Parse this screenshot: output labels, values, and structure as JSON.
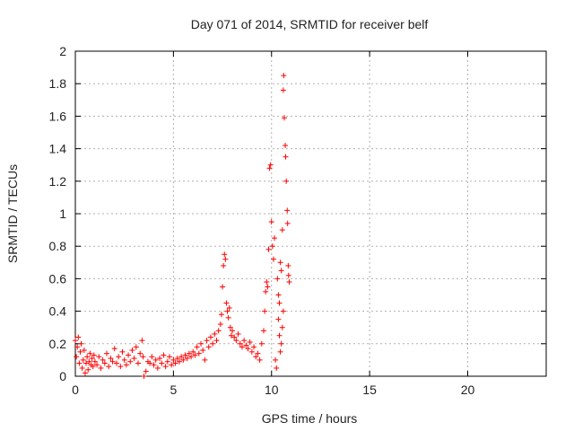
{
  "chart_data": {
    "type": "scatter",
    "title": "Day 071 of 2014, SRMTID for receiver belf",
    "xlabel": "GPS time / hours",
    "ylabel": "SRMTID / TECUs",
    "xlim": [
      0,
      24
    ],
    "ylim": [
      0,
      2
    ],
    "xticks": [
      0,
      5,
      10,
      15,
      20
    ],
    "xtick_labels": [
      "0",
      "5",
      "10",
      "15",
      "20"
    ],
    "yticks": [
      0,
      0.2,
      0.4,
      0.6,
      0.8,
      1,
      1.2,
      1.4,
      1.6,
      1.8,
      2
    ],
    "ytick_labels": [
      "0",
      "0.2",
      "0.4",
      "0.6",
      "0.8",
      "1",
      "1.2",
      "1.4",
      "1.6",
      "1.8",
      "2"
    ],
    "grid": true,
    "marker": "+",
    "color": "#ff0000",
    "series": [
      {
        "name": "SRMTID",
        "points": [
          [
            0.0,
            0.22
          ],
          [
            0.05,
            0.12
          ],
          [
            0.1,
            0.18
          ],
          [
            0.15,
            0.24
          ],
          [
            0.2,
            0.08
          ],
          [
            0.25,
            0.15
          ],
          [
            0.3,
            0.2
          ],
          [
            0.35,
            0.05
          ],
          [
            0.4,
            0.1
          ],
          [
            0.45,
            0.16
          ],
          [
            0.5,
            0.02
          ],
          [
            0.55,
            0.08
          ],
          [
            0.6,
            0.12
          ],
          [
            0.65,
            0.04
          ],
          [
            0.7,
            0.09
          ],
          [
            0.75,
            0.14
          ],
          [
            0.8,
            0.07
          ],
          [
            0.85,
            0.11
          ],
          [
            0.9,
            0.06
          ],
          [
            0.95,
            0.13
          ],
          [
            1.0,
            0.09
          ],
          [
            1.1,
            0.07
          ],
          [
            1.2,
            0.12
          ],
          [
            1.3,
            0.05
          ],
          [
            1.4,
            0.1
          ],
          [
            1.5,
            0.08
          ],
          [
            1.6,
            0.14
          ],
          [
            1.7,
            0.06
          ],
          [
            1.8,
            0.11
          ],
          [
            1.9,
            0.09
          ],
          [
            2.0,
            0.17
          ],
          [
            2.1,
            0.08
          ],
          [
            2.2,
            0.12
          ],
          [
            2.3,
            0.06
          ],
          [
            2.4,
            0.15
          ],
          [
            2.5,
            0.1
          ],
          [
            2.6,
            0.07
          ],
          [
            2.7,
            0.13
          ],
          [
            2.8,
            0.09
          ],
          [
            2.9,
            0.16
          ],
          [
            3.0,
            0.11
          ],
          [
            3.1,
            0.18
          ],
          [
            3.2,
            0.08
          ],
          [
            3.3,
            0.14
          ],
          [
            3.4,
            0.22
          ],
          [
            3.45,
            0.12
          ],
          [
            3.5,
            0.0
          ],
          [
            3.6,
            0.03
          ],
          [
            3.7,
            0.09
          ],
          [
            3.8,
            0.08
          ],
          [
            3.9,
            0.12
          ],
          [
            4.0,
            0.07
          ],
          [
            4.1,
            0.1
          ],
          [
            4.2,
            0.05
          ],
          [
            4.3,
            0.11
          ],
          [
            4.4,
            0.08
          ],
          [
            4.5,
            0.13
          ],
          [
            4.6,
            0.06
          ],
          [
            4.7,
            0.09
          ],
          [
            4.8,
            0.12
          ],
          [
            4.9,
            0.07
          ],
          [
            5.0,
            0.1
          ],
          [
            5.1,
            0.08
          ],
          [
            5.2,
            0.11
          ],
          [
            5.3,
            0.09
          ],
          [
            5.4,
            0.12
          ],
          [
            5.5,
            0.1
          ],
          [
            5.6,
            0.13
          ],
          [
            5.7,
            0.11
          ],
          [
            5.8,
            0.14
          ],
          [
            5.9,
            0.12
          ],
          [
            6.0,
            0.15
          ],
          [
            6.1,
            0.13
          ],
          [
            6.2,
            0.18
          ],
          [
            6.3,
            0.14
          ],
          [
            6.4,
            0.2
          ],
          [
            6.5,
            0.16
          ],
          [
            6.6,
            0.1
          ],
          [
            6.7,
            0.22
          ],
          [
            6.8,
            0.18
          ],
          [
            6.9,
            0.24
          ],
          [
            7.0,
            0.2
          ],
          [
            7.1,
            0.26
          ],
          [
            7.2,
            0.22
          ],
          [
            7.3,
            0.28
          ],
          [
            7.4,
            0.32
          ],
          [
            7.45,
            0.38
          ],
          [
            7.5,
            0.55
          ],
          [
            7.55,
            0.68
          ],
          [
            7.6,
            0.75
          ],
          [
            7.65,
            0.72
          ],
          [
            7.7,
            0.45
          ],
          [
            7.75,
            0.4
          ],
          [
            7.8,
            0.36
          ],
          [
            7.85,
            0.42
          ],
          [
            7.9,
            0.3
          ],
          [
            7.95,
            0.25
          ],
          [
            8.0,
            0.28
          ],
          [
            8.1,
            0.24
          ],
          [
            8.2,
            0.22
          ],
          [
            8.3,
            0.26
          ],
          [
            8.4,
            0.2
          ],
          [
            8.5,
            0.18
          ],
          [
            8.6,
            0.22
          ],
          [
            8.7,
            0.19
          ],
          [
            8.8,
            0.17
          ],
          [
            8.9,
            0.21
          ],
          [
            9.0,
            0.15
          ],
          [
            9.1,
            0.18
          ],
          [
            9.2,
            0.12
          ],
          [
            9.3,
            0.14
          ],
          [
            9.4,
            0.1
          ],
          [
            9.5,
            0.2
          ],
          [
            9.6,
            0.28
          ],
          [
            9.65,
            0.4
          ],
          [
            9.7,
            0.52
          ],
          [
            9.75,
            0.58
          ],
          [
            9.8,
            0.55
          ],
          [
            9.85,
            0.78
          ],
          [
            9.9,
            1.28
          ],
          [
            9.95,
            1.3
          ],
          [
            10.0,
            0.95
          ],
          [
            10.05,
            0.8
          ],
          [
            10.1,
            0.72
          ],
          [
            10.15,
            0.85
          ],
          [
            10.2,
            0.1
          ],
          [
            10.25,
            0.05
          ],
          [
            10.3,
            0.6
          ],
          [
            10.35,
            0.5
          ],
          [
            10.4,
            0.45
          ],
          [
            10.45,
            0.7
          ],
          [
            10.5,
            0.65
          ],
          [
            10.55,
            0.9
          ],
          [
            10.6,
            1.76
          ],
          [
            10.62,
            1.85
          ],
          [
            10.65,
            1.59
          ],
          [
            10.7,
            1.42
          ],
          [
            10.72,
            1.35
          ],
          [
            10.75,
            1.2
          ],
          [
            10.8,
            1.02
          ],
          [
            10.82,
            0.94
          ],
          [
            10.85,
            0.68
          ],
          [
            10.87,
            0.62
          ],
          [
            10.9,
            0.58
          ],
          [
            10.6,
            0.4
          ],
          [
            10.55,
            0.3
          ],
          [
            10.5,
            0.2
          ],
          [
            10.45,
            0.15
          ],
          [
            10.4,
            0.25
          ],
          [
            10.35,
            0.35
          ]
        ]
      }
    ]
  }
}
